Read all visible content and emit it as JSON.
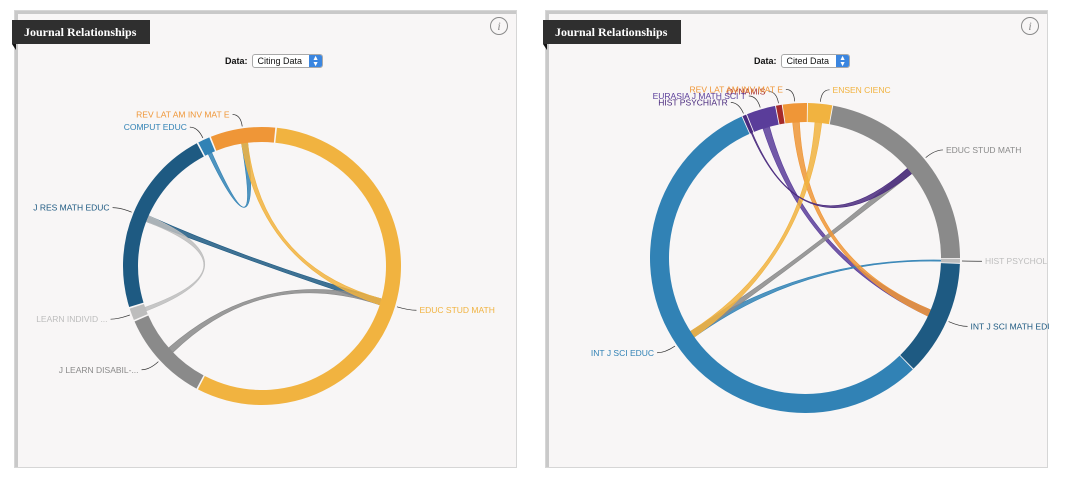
{
  "panels": [
    {
      "title": "Journal Relationships",
      "data_label": "Data:",
      "selected": "Citing Data",
      "info_label": "i"
    },
    {
      "title": "Journal Relationships",
      "data_label": "Data:",
      "selected": "Cited Data",
      "info_label": "i"
    }
  ],
  "chart_data": [
    {
      "type": "chord",
      "title": "",
      "groups": [
        {
          "name": "REV LAT AM INV MAT E",
          "color": "#ef9637",
          "share": 0.065
        },
        {
          "name": "EDUC STUD MATH",
          "color": "#f1b340",
          "share": 0.483
        },
        {
          "name": "J LEARN DISABIL-...",
          "color": "#8a8a8a",
          "share": 0.092
        },
        {
          "name": "LEARN INDIVID ...",
          "color": "#bdbdbd",
          "share": 0.012
        },
        {
          "name": "J RES MATH EDUC",
          "color": "#1e5a82",
          "share": 0.19
        },
        {
          "name": "COMPUT EDUC",
          "color": "#3182b5",
          "share": 0.012
        }
      ]
    },
    {
      "type": "chord",
      "title": "",
      "groups": [
        {
          "name": "DYNAMIS",
          "color": "#a52a2a",
          "share": 0.006
        },
        {
          "name": "REV LAT AM INV MAT E",
          "color": "#ef9637",
          "share": 0.025
        },
        {
          "name": "ENSEN CIENC",
          "color": "#f1b340",
          "share": 0.025
        },
        {
          "name": "EDUC STUD MATH",
          "color": "#8a8a8a",
          "share": 0.22
        },
        {
          "name": "HIST PSYCHOL",
          "color": "#bdbdbd",
          "share": 0.004
        },
        {
          "name": "INT J SCI MATH EDUC",
          "color": "#1e5a82",
          "share": 0.12
        },
        {
          "name": "INT J SCI EDUC",
          "color": "#3182b5",
          "share": 0.553
        },
        {
          "name": "HIST PSYCHIATR",
          "color": "#4a2a7e",
          "share": 0.004
        },
        {
          "name": "EURASIA J MATH SCI T",
          "color": "#5a3d9a",
          "share": 0.03
        }
      ]
    }
  ]
}
